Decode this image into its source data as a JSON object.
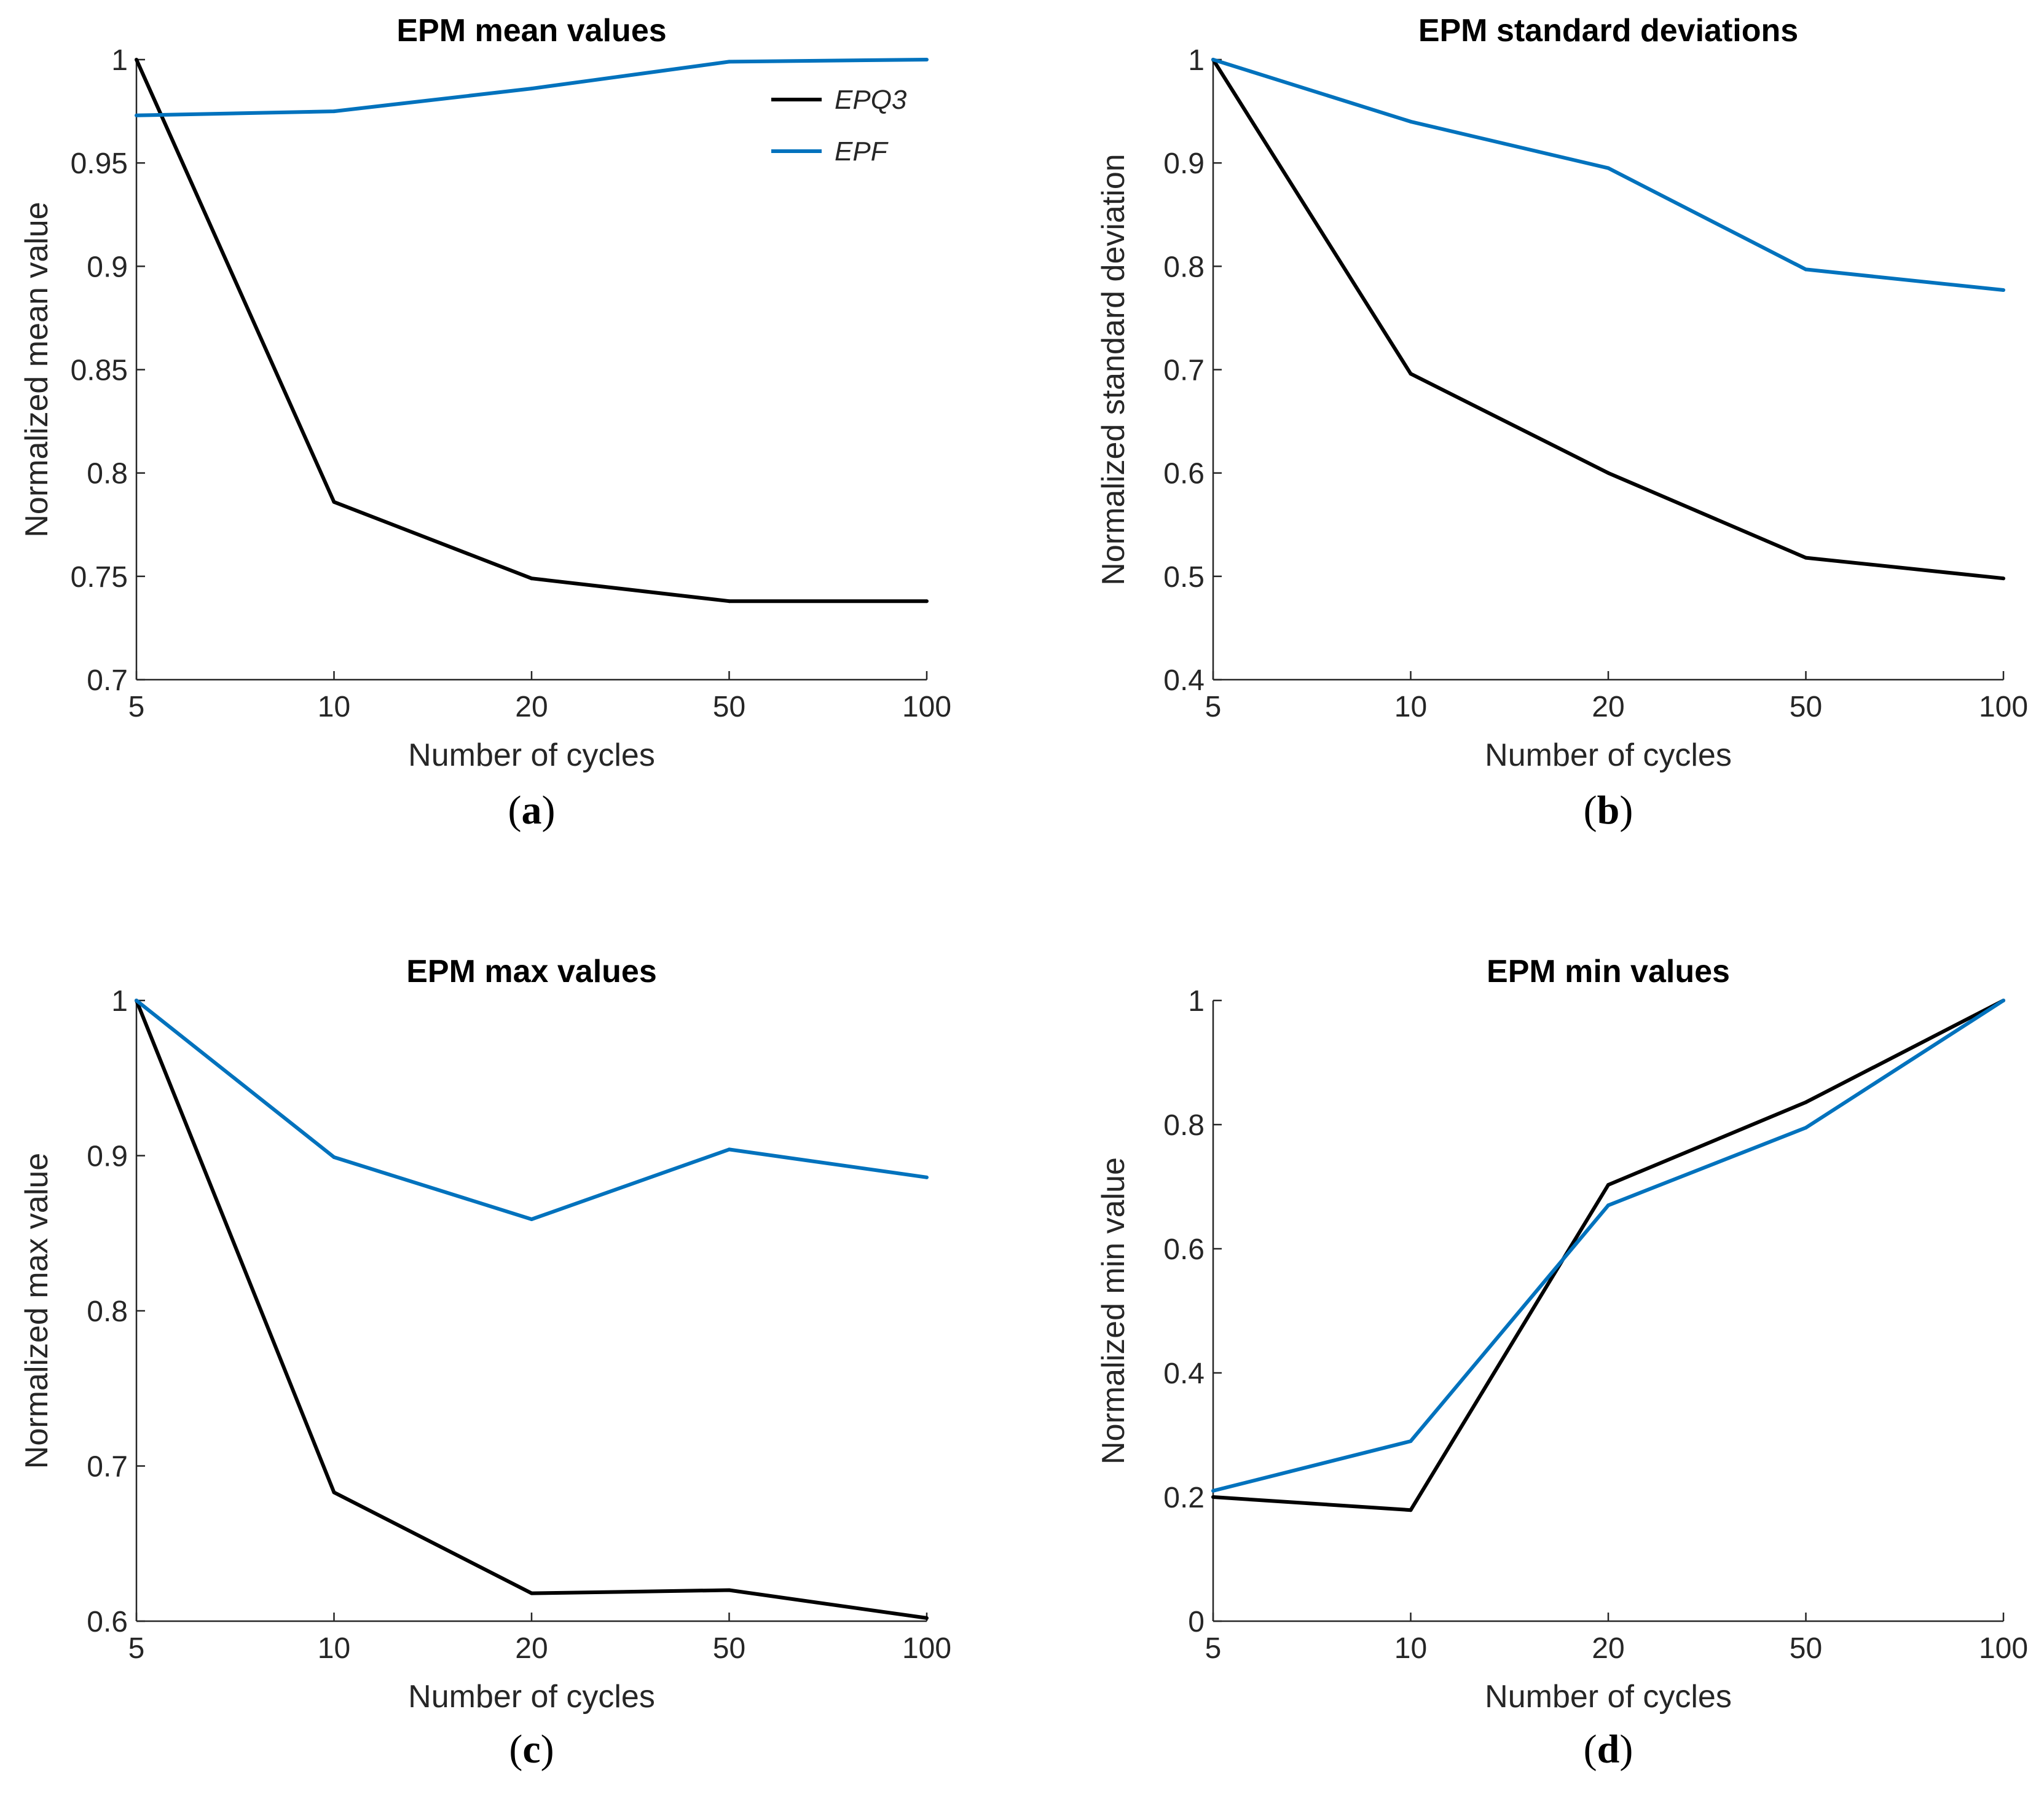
{
  "chart_data": [
    {
      "type": "line",
      "panel_label": "a",
      "title": "EPM mean values",
      "xlabel": "Number of cycles",
      "ylabel": "Normalized mean value",
      "x": [
        "5",
        "10",
        "20",
        "50",
        "100"
      ],
      "ylim": [
        0.7,
        1
      ],
      "yticks": [
        "0.7",
        "0.75",
        "0.8",
        "0.85",
        "0.9",
        "0.95",
        "1"
      ],
      "grid": false,
      "legend": "top-right",
      "series": [
        {
          "name": "EPQ3",
          "color": "#000000",
          "values": [
            1.0,
            0.786,
            0.749,
            0.738,
            0.738
          ]
        },
        {
          "name": "EPF",
          "color": "#0072bd",
          "values": [
            0.973,
            0.975,
            0.986,
            0.999,
            1.0
          ]
        }
      ]
    },
    {
      "type": "line",
      "panel_label": "b",
      "title": "EPM standard deviations",
      "xlabel": "Number of cycles",
      "ylabel": "Normalized standard deviation",
      "x": [
        "5",
        "10",
        "20",
        "50",
        "100"
      ],
      "ylim": [
        0.4,
        1
      ],
      "yticks": [
        "0.4",
        "0.5",
        "0.6",
        "0.7",
        "0.8",
        "0.9",
        "1"
      ],
      "grid": false,
      "series": [
        {
          "name": "EPQ3",
          "color": "#000000",
          "values": [
            1.0,
            0.696,
            0.6,
            0.518,
            0.498
          ]
        },
        {
          "name": "EPF",
          "color": "#0072bd",
          "values": [
            1.0,
            0.94,
            0.895,
            0.797,
            0.777
          ]
        }
      ]
    },
    {
      "type": "line",
      "panel_label": "c",
      "title": "EPM max values",
      "xlabel": "Number of cycles",
      "ylabel": "Normalized max value",
      "x": [
        "5",
        "10",
        "20",
        "50",
        "100"
      ],
      "ylim": [
        0.6,
        1
      ],
      "yticks": [
        "0.6",
        "0.7",
        "0.8",
        "0.9",
        "1"
      ],
      "grid": false,
      "series": [
        {
          "name": "EPQ3",
          "color": "#000000",
          "values": [
            1.0,
            0.683,
            0.618,
            0.62,
            0.602
          ]
        },
        {
          "name": "EPF",
          "color": "#0072bd",
          "values": [
            1.0,
            0.899,
            0.859,
            0.904,
            0.886
          ]
        }
      ]
    },
    {
      "type": "line",
      "panel_label": "d",
      "title": "EPM min values",
      "xlabel": "Number of cycles",
      "ylabel": "Normalized min value",
      "x": [
        "5",
        "10",
        "20",
        "50",
        "100"
      ],
      "ylim": [
        0,
        1
      ],
      "yticks": [
        "0",
        "0.2",
        "0.4",
        "0.6",
        "0.8",
        "1"
      ],
      "grid": false,
      "series": [
        {
          "name": "EPQ3",
          "color": "#000000",
          "values": [
            0.2,
            0.179,
            0.703,
            0.836,
            1.0
          ]
        },
        {
          "name": "EPF",
          "color": "#0072bd",
          "values": [
            0.21,
            0.29,
            0.67,
            0.795,
            1.0
          ]
        }
      ]
    }
  ]
}
